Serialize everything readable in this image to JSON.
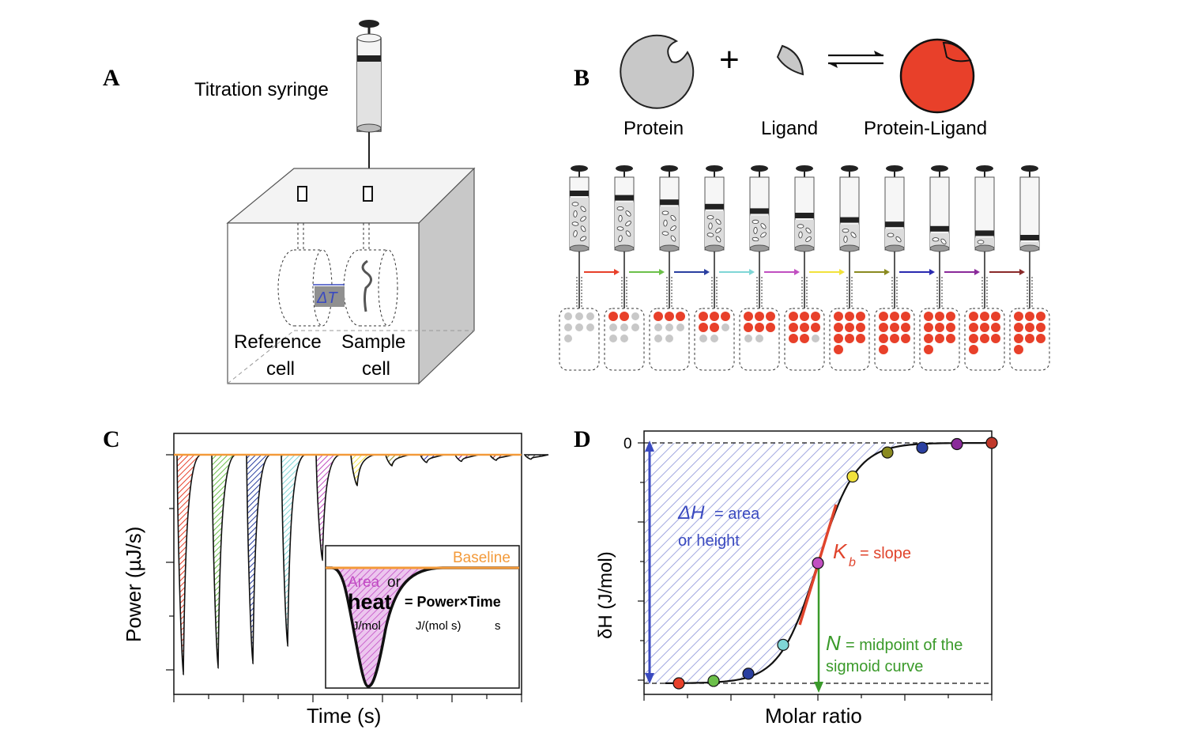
{
  "panels": {
    "a": {
      "letter": "A",
      "syringe_label": "Titration syringe",
      "delta_t": "ΔT",
      "reference_line1": "Reference",
      "reference_line2": "cell",
      "sample_line1": "Sample",
      "sample_line2": "cell"
    },
    "b": {
      "letter": "B",
      "plus": "+",
      "protein": "Protein",
      "ligand": "Ligand",
      "complex": "Protein-Ligand",
      "step_count": 11,
      "arrow_colors": [
        "#e8402a",
        "#6cc04a",
        "#2a3fa0",
        "#7fd6d6",
        "#c14fc1",
        "#f2e23c",
        "#8a8a20",
        "#2a2ab0",
        "#8a2a9a",
        "#8a2a2a"
      ]
    },
    "c": {
      "letter": "C",
      "ylabel": "Power (µJ/s)",
      "xlabel": "Time (s)",
      "inset": {
        "baseline": "Baseline",
        "area": "Area",
        "or": "or",
        "heat": "heat",
        "equation": "= Power×Time",
        "unit_heat": "J/mol",
        "unit_power": "J/(mol s)",
        "unit_time": "s"
      },
      "peak_depths": [
        1.0,
        0.97,
        0.95,
        0.87,
        0.48,
        0.14,
        0.05,
        0.035,
        0.03,
        0.025,
        0.02
      ],
      "peak_colors": [
        "#e8402a",
        "#6cc04a",
        "#2a3fa0",
        "#7fd6d6",
        "#c14fc1",
        "#f2e23c",
        "#8a8a20",
        "#2a2ab0",
        "#8a2a9a",
        "#8a2a2a",
        "#555555"
      ]
    },
    "d": {
      "letter": "D",
      "ylabel": "δH (J/mol)",
      "xlabel": "Molar ratio",
      "y_tick": "0",
      "dh_symbol": "ΔH",
      "dh_text1": "= area",
      "dh_text2": "or height",
      "kb_symbol": "K",
      "kb_sub": "b",
      "kb_text": "= slope",
      "n_symbol": "N",
      "n_text1": "= midpoint of the",
      "n_text2": "sigmoid curve",
      "points": [
        {
          "x": 0.1,
          "y": -1.0,
          "color": "#e8402a"
        },
        {
          "x": 0.2,
          "y": -0.99,
          "color": "#6cc04a"
        },
        {
          "x": 0.3,
          "y": -0.96,
          "color": "#2a3fa0"
        },
        {
          "x": 0.4,
          "y": -0.84,
          "color": "#7fd6d6"
        },
        {
          "x": 0.5,
          "y": -0.5,
          "color": "#c14fc1"
        },
        {
          "x": 0.6,
          "y": -0.14,
          "color": "#f2e23c"
        },
        {
          "x": 0.7,
          "y": -0.04,
          "color": "#8a8a20"
        },
        {
          "x": 0.8,
          "y": -0.02,
          "color": "#2a3fa0"
        },
        {
          "x": 0.9,
          "y": -0.005,
          "color": "#8a2a9a"
        },
        {
          "x": 1.0,
          "y": 0.0,
          "color": "#c0392b"
        }
      ]
    }
  },
  "colors": {
    "blue_text": "#3a4ac0",
    "red_text": "#e0442c",
    "green_text": "#3a9a2a",
    "orange": "#f39a3a",
    "magenta": "#c24ac4",
    "protein_fill": "#c8c8c8",
    "complex_fill": "#e8402a"
  }
}
